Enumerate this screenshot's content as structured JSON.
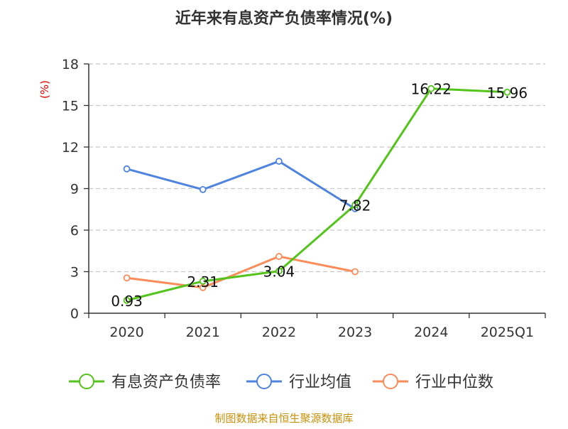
{
  "chart_data": {
    "type": "line",
    "title": "近年来有息资产负债率情况(%)",
    "ylabel": "(%)",
    "categories": [
      "2020",
      "2021",
      "2022",
      "2023",
      "2024",
      "2025Q1"
    ],
    "ylim": [
      0,
      18
    ],
    "yticks": [
      0,
      3,
      6,
      9,
      12,
      15,
      18
    ],
    "grid": true,
    "legend_position": "bottom",
    "series": [
      {
        "name": "有息资产负债率",
        "color": "#52c41a",
        "values": [
          0.93,
          2.31,
          3.04,
          7.82,
          16.22,
          15.96
        ],
        "labels": [
          "0.93",
          "2.31",
          "3.04",
          "7.82",
          "16.22",
          "15.96"
        ]
      },
      {
        "name": "行业均值",
        "color": "#4e84e0",
        "values": [
          10.42,
          8.93,
          10.97,
          7.54,
          null,
          null
        ]
      },
      {
        "name": "行业中位数",
        "color": "#fa8c5a",
        "values": [
          2.55,
          1.85,
          4.1,
          3.0,
          null,
          null
        ]
      }
    ]
  },
  "footer": {
    "source": "制图数据来自恒生聚源数据库"
  },
  "colors": {
    "ylabel": "#e00000",
    "source": "#c8900a"
  }
}
